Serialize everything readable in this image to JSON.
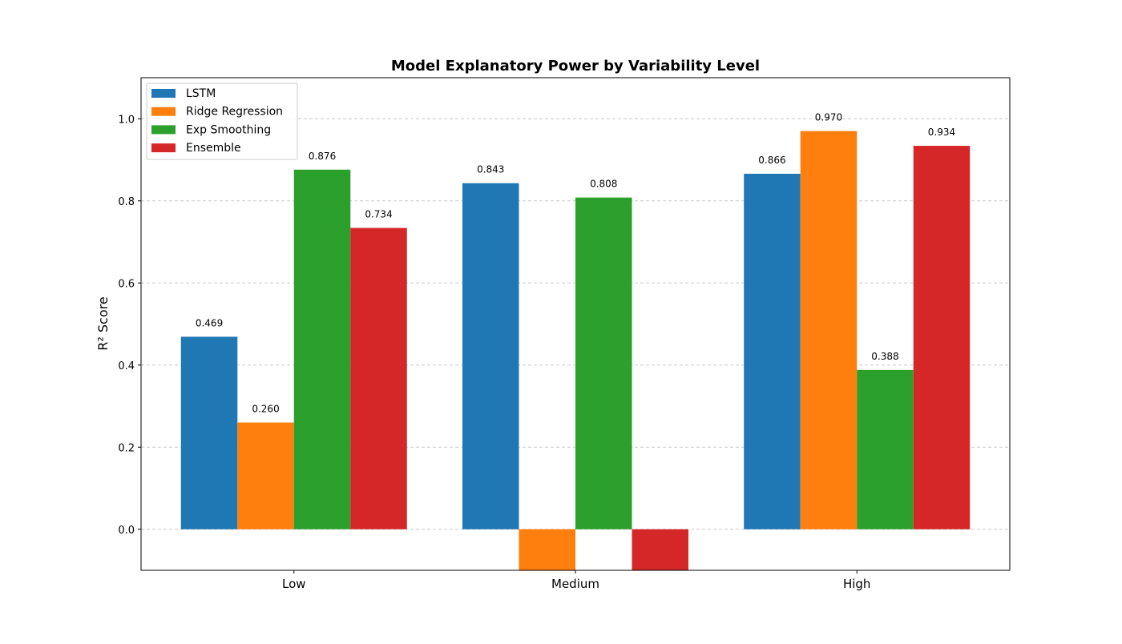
{
  "chart_data": {
    "type": "bar",
    "title": "Model Explanatory Power by Variability Level",
    "xlabel": "",
    "ylabel": "R² Score",
    "categories": [
      "Low",
      "Medium",
      "High"
    ],
    "series": [
      {
        "name": "LSTM",
        "color": "#1f77b4",
        "values": [
          0.469,
          0.843,
          0.866
        ],
        "labels": [
          "0.469",
          "0.843",
          "0.866"
        ]
      },
      {
        "name": "Ridge Regression",
        "color": "#ff7f0e",
        "values": [
          0.26,
          -0.12,
          0.97
        ],
        "labels": [
          "0.260",
          null,
          "0.970"
        ]
      },
      {
        "name": "Exp Smoothing",
        "color": "#2ca02c",
        "values": [
          0.876,
          0.808,
          0.388
        ],
        "labels": [
          "0.876",
          "0.808",
          "0.388"
        ]
      },
      {
        "name": "Ensemble",
        "color": "#d62728",
        "values": [
          0.734,
          -0.12,
          0.934
        ],
        "labels": [
          "0.734",
          null,
          "0.934"
        ]
      }
    ],
    "ylim": [
      -0.1,
      1.1
    ],
    "yticks": [
      0.0,
      0.2,
      0.4,
      0.6,
      0.8,
      1.0
    ],
    "ytick_labels": [
      "0.0",
      "0.2",
      "0.4",
      "0.6",
      "0.8",
      "1.0"
    ],
    "grid": {
      "y": true,
      "style": "dashed",
      "color": "#c8c8c8"
    },
    "legend_position": "top-left"
  }
}
